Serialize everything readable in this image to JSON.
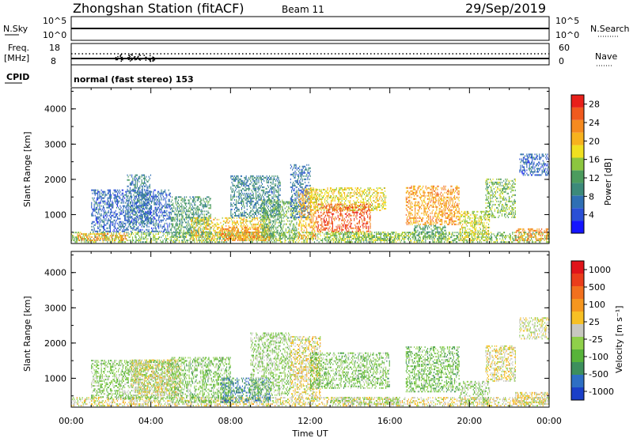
{
  "header": {
    "station": "Zhongshan Station (fitACF)",
    "beam": "Beam 11",
    "date": "29/Sep/2019"
  },
  "status_panel": {
    "nsky_label": "N.Sky",
    "nsky_ticks": [
      "10^5",
      "10^0"
    ],
    "nsearch_label": "N.Search",
    "nsearch_ticks": [
      "10^5",
      "10^0"
    ],
    "freq_label": "Freq.",
    "freq_unit": "[MHz]",
    "freq_ticks": [
      "18",
      "8"
    ],
    "nave_label": "Nave",
    "nave_ticks": [
      "60",
      "0"
    ],
    "cpid_label": "CPID",
    "cpid_text": "normal (fast stereo) 153"
  },
  "chart_data": [
    {
      "type": "heatmap",
      "title": "",
      "xlabel": "Time UT",
      "ylabel": "Slant Range [km]",
      "x_ticks": [
        "00:00",
        "04:00",
        "08:00",
        "12:00",
        "16:00",
        "20:00",
        "00:00"
      ],
      "xlim": [
        0,
        24
      ],
      "y_ticks": [
        "1000",
        "2000",
        "3000",
        "4000"
      ],
      "ylim": [
        180,
        4600
      ],
      "colorbar": {
        "label": "Power [dB]",
        "ticks": [
          "4",
          "8",
          "12",
          "16",
          "20",
          "24",
          "28"
        ],
        "range": [
          0,
          30
        ],
        "colors": [
          "#1414ff",
          "#2a4fd6",
          "#2f6fb4",
          "#3c8a7a",
          "#4c9c5e",
          "#8cc63f",
          "#f0e020",
          "#f7b21e",
          "#f58a1f",
          "#f05a1e",
          "#e8201a"
        ]
      },
      "regions": [
        {
          "t0": 0.0,
          "t1": 24.0,
          "r0": 200,
          "r1": 500,
          "v": 14
        },
        {
          "t0": 0.3,
          "t1": 2.8,
          "r0": 250,
          "r1": 450,
          "v": 22
        },
        {
          "t0": 1.0,
          "t1": 5.0,
          "r0": 500,
          "r1": 1700,
          "v": 6
        },
        {
          "t0": 2.8,
          "t1": 4.0,
          "r0": 700,
          "r1": 2100,
          "v": 8
        },
        {
          "t0": 5.0,
          "t1": 7.0,
          "r0": 350,
          "r1": 1500,
          "v": 11
        },
        {
          "t0": 6.0,
          "t1": 10.0,
          "r0": 250,
          "r1": 900,
          "v": 19
        },
        {
          "t0": 7.5,
          "t1": 10.0,
          "r0": 250,
          "r1": 650,
          "v": 23
        },
        {
          "t0": 8.0,
          "t1": 10.5,
          "r0": 900,
          "r1": 2100,
          "v": 9
        },
        {
          "t0": 9.5,
          "t1": 11.3,
          "r0": 300,
          "r1": 1400,
          "v": 13
        },
        {
          "t0": 11.0,
          "t1": 12.0,
          "r0": 900,
          "r1": 2400,
          "v": 7
        },
        {
          "t0": 11.4,
          "t1": 12.3,
          "r0": 300,
          "r1": 1700,
          "v": 21
        },
        {
          "t0": 12.0,
          "t1": 15.8,
          "r0": 1100,
          "r1": 1750,
          "v": 18
        },
        {
          "t0": 12.3,
          "t1": 15.0,
          "r0": 500,
          "r1": 1300,
          "v": 26
        },
        {
          "t0": 13.0,
          "t1": 16.5,
          "r0": 250,
          "r1": 500,
          "v": 15
        },
        {
          "t0": 16.8,
          "t1": 19.5,
          "r0": 700,
          "r1": 1800,
          "v": 22
        },
        {
          "t0": 17.2,
          "t1": 18.8,
          "r0": 300,
          "r1": 700,
          "v": 12
        },
        {
          "t0": 19.5,
          "t1": 21.0,
          "r0": 250,
          "r1": 1100,
          "v": 17
        },
        {
          "t0": 20.8,
          "t1": 22.3,
          "r0": 900,
          "r1": 2000,
          "v": 14
        },
        {
          "t0": 22.5,
          "t1": 24.0,
          "r0": 2100,
          "r1": 2700,
          "v": 6
        },
        {
          "t0": 22.3,
          "t1": 24.0,
          "r0": 250,
          "r1": 600,
          "v": 23
        }
      ]
    },
    {
      "type": "heatmap",
      "title": "",
      "xlabel": "Time UT",
      "ylabel": "Slant Range [km]",
      "x_ticks": [
        "00:00",
        "04:00",
        "08:00",
        "12:00",
        "16:00",
        "20:00",
        "00:00"
      ],
      "xlim": [
        0,
        24
      ],
      "y_ticks": [
        "1000",
        "2000",
        "3000",
        "4000"
      ],
      "ylim": [
        180,
        4600
      ],
      "colorbar": {
        "label": "Velocity [m s⁻¹]",
        "ticks": [
          "1000",
          "500",
          "100",
          "25",
          "-25",
          "-100",
          "-500",
          "-1000"
        ],
        "range": [
          -1200,
          1200
        ],
        "colors": [
          "#1a3fc8",
          "#2e6fc4",
          "#3d8f5d",
          "#57b33a",
          "#8fd04a",
          "#c8c8c0",
          "#f7c024",
          "#f5961f",
          "#f2701e",
          "#ea3d1b",
          "#e0141a"
        ]
      },
      "regions": [
        {
          "t0": 0.0,
          "t1": 24.0,
          "r0": 200,
          "r1": 450,
          "v": 60
        },
        {
          "t0": 1.0,
          "t1": 5.0,
          "r0": 400,
          "r1": 1500,
          "v": -250
        },
        {
          "t0": 3.0,
          "t1": 5.5,
          "r0": 500,
          "r1": 1500,
          "v": 80
        },
        {
          "t0": 5.0,
          "t1": 8.0,
          "r0": 300,
          "r1": 1600,
          "v": -300
        },
        {
          "t0": 7.5,
          "t1": 10.0,
          "r0": 300,
          "r1": 1000,
          "v": -700
        },
        {
          "t0": 9.0,
          "t1": 11.0,
          "r0": 500,
          "r1": 2300,
          "v": -200
        },
        {
          "t0": 11.0,
          "t1": 12.5,
          "r0": 400,
          "r1": 2200,
          "v": 70
        },
        {
          "t0": 12.0,
          "t1": 16.0,
          "r0": 700,
          "r1": 1700,
          "v": -300
        },
        {
          "t0": 13.0,
          "t1": 16.5,
          "r0": 250,
          "r1": 450,
          "v": -150
        },
        {
          "t0": 16.8,
          "t1": 19.5,
          "r0": 600,
          "r1": 1900,
          "v": -350
        },
        {
          "t0": 19.5,
          "t1": 21.0,
          "r0": 250,
          "r1": 900,
          "v": -200
        },
        {
          "t0": 20.8,
          "t1": 22.3,
          "r0": 900,
          "r1": 1900,
          "v": 60
        },
        {
          "t0": 22.5,
          "t1": 24.0,
          "r0": 2100,
          "r1": 2700,
          "v": 0
        },
        {
          "t0": 22.3,
          "t1": 24.0,
          "r0": 250,
          "r1": 600,
          "v": 80
        }
      ]
    }
  ]
}
